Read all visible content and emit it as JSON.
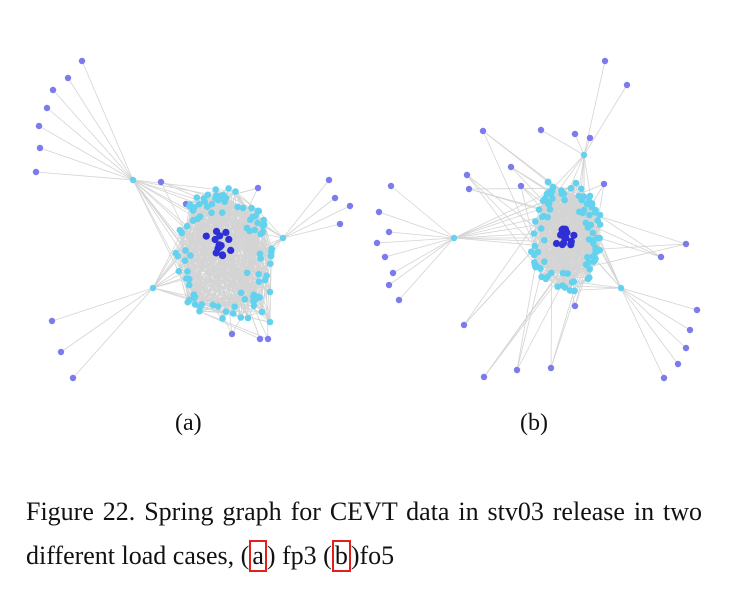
{
  "figure": {
    "panel_a_label": "(a)",
    "panel_b_label": "(b)",
    "caption": {
      "text_before": "Figure 22. Spring graph for CEVT data in stv03 release in two different load cases, (",
      "ref_a": "a",
      "text_middle": ") fp3 (",
      "ref_b": "b",
      "text_after": ")fo5"
    }
  },
  "colors": {
    "edge": "#d4d4d4",
    "node_outer": "#7b7bee",
    "node_middle": "#62d2ee",
    "node_core": "#2f2fd6",
    "ref_box": "#e0201a"
  }
}
